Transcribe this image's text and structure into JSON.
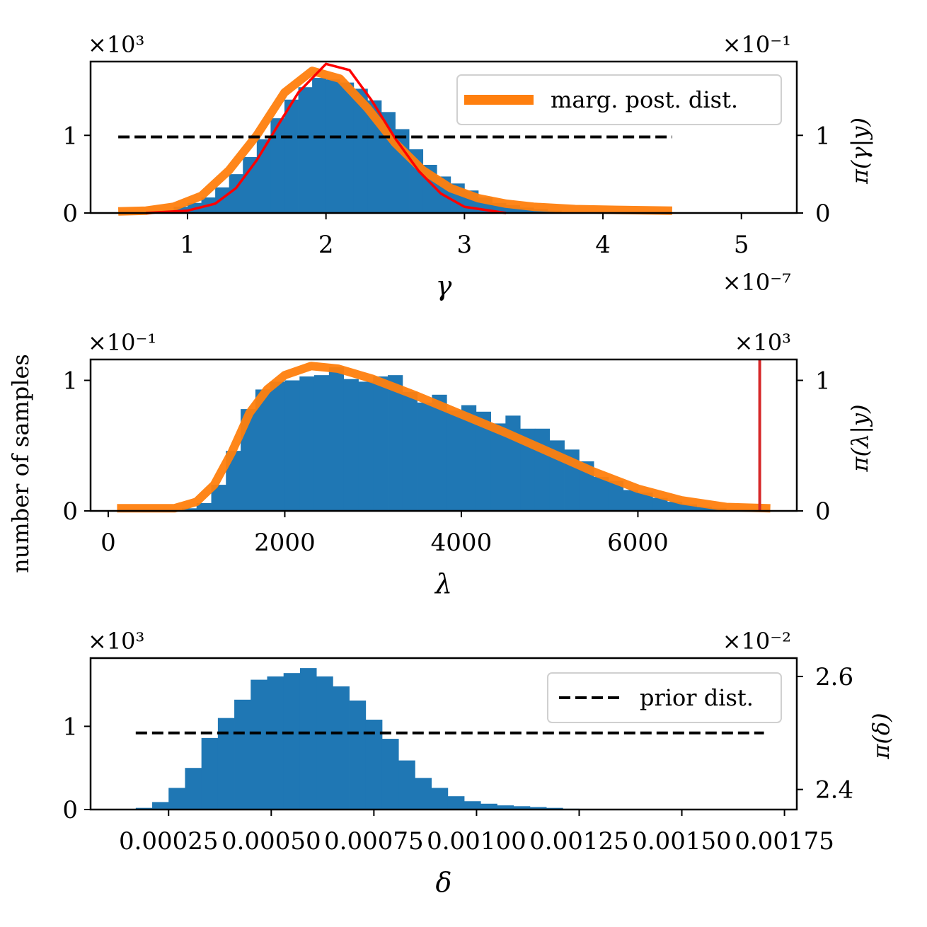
{
  "figure": {
    "shared_ylabel": "number of samples"
  },
  "chart_data": [
    {
      "type": "bar",
      "xlabel": "γ",
      "ylabel_right": "π(γ|y)",
      "x_multiplier": "×10⁻⁷",
      "left_multiplier": "×10³",
      "right_multiplier": "×10⁻¹",
      "xlim": [
        0.3,
        5.4
      ],
      "xticks": [
        1,
        2,
        3,
        4,
        5
      ],
      "xtick_labels": [
        "1",
        "2",
        "3",
        "4",
        "5"
      ],
      "left_ylim": [
        0,
        1.95
      ],
      "left_yticks": [
        0,
        1
      ],
      "left_ytick_labels": [
        "0",
        "1"
      ],
      "right_ylim": [
        0,
        1.95
      ],
      "right_yticks": [
        0,
        1
      ],
      "right_ytick_labels": [
        "0",
        "1"
      ],
      "histogram": {
        "color": "#1f77b4",
        "bin_width": 0.1,
        "bin_starts": [
          0.9,
          1.0,
          1.1,
          1.2,
          1.3,
          1.4,
          1.5,
          1.6,
          1.7,
          1.8,
          1.9,
          2.0,
          2.1,
          2.2,
          2.3,
          2.4,
          2.5,
          2.6,
          2.7,
          2.8,
          2.9,
          3.0,
          3.1,
          3.2,
          3.3,
          3.4,
          3.5,
          3.6
        ],
        "counts": [
          0.08,
          0.13,
          0.2,
          0.33,
          0.5,
          0.72,
          0.95,
          1.22,
          1.46,
          1.62,
          1.74,
          1.72,
          1.68,
          1.6,
          1.45,
          1.3,
          1.08,
          0.82,
          0.62,
          0.47,
          0.38,
          0.29,
          0.2,
          0.13,
          0.1,
          0.07,
          0.05,
          0.03
        ]
      },
      "series": [
        {
          "name": "marg. post. dist.",
          "color": "#ff7f0e",
          "x": [
            0.5,
            0.7,
            0.9,
            1.1,
            1.3,
            1.5,
            1.7,
            1.9,
            2.1,
            2.3,
            2.5,
            2.7,
            2.9,
            3.1,
            3.3,
            3.5,
            3.8,
            4.1,
            4.5
          ],
          "y": [
            0.02,
            0.03,
            0.08,
            0.22,
            0.55,
            1.0,
            1.55,
            1.83,
            1.73,
            1.35,
            0.9,
            0.55,
            0.32,
            0.19,
            0.12,
            0.08,
            0.05,
            0.04,
            0.03
          ]
        },
        {
          "color": "#ff0000",
          "axis": "right",
          "x": [
            0.7,
            1.0,
            1.2,
            1.35,
            1.5,
            1.65,
            1.8,
            2.0,
            2.17,
            2.33,
            2.5,
            2.67,
            2.83,
            3.0,
            3.3
          ],
          "y": [
            0.0,
            0.03,
            0.12,
            0.32,
            0.68,
            1.12,
            1.55,
            1.92,
            1.84,
            1.45,
            0.96,
            0.54,
            0.25,
            0.08,
            0.0
          ]
        },
        {
          "color": "#000000",
          "style": "dashed",
          "x": [
            0.5,
            4.5
          ],
          "y": [
            0.98,
            0.98
          ]
        }
      ],
      "legend": {
        "placement": "top-right",
        "entries": [
          "marg. post. dist."
        ]
      }
    },
    {
      "type": "bar",
      "xlabel": "λ",
      "ylabel_right": "π(λ|y)",
      "left_multiplier": "×10⁻¹",
      "right_multiplier": "×10³",
      "xlim": [
        -200,
        7800
      ],
      "xticks": [
        0,
        2000,
        4000,
        6000
      ],
      "xtick_labels": [
        "0",
        "2000",
        "4000",
        "6000"
      ],
      "left_ylim": [
        0,
        1.16
      ],
      "left_yticks": [
        0,
        1
      ],
      "left_ytick_labels": [
        "0",
        "1"
      ],
      "right_ylim": [
        0,
        1.16
      ],
      "right_yticks": [
        0,
        1
      ],
      "right_ytick_labels": [
        "0",
        "1"
      ],
      "histogram": {
        "color": "#1f77b4",
        "bin_width": 167,
        "bin_starts": [
          833,
          1000,
          1167,
          1333,
          1500,
          1667,
          1833,
          2000,
          2167,
          2333,
          2500,
          2667,
          2833,
          3000,
          3167,
          3333,
          3500,
          3667,
          3833,
          4000,
          4167,
          4333,
          4500,
          4667,
          4833,
          5000,
          5167,
          5333,
          5500,
          5667,
          5833,
          6000,
          6167,
          6333,
          6500,
          6667,
          6833
        ],
        "counts": [
          0.02,
          0.06,
          0.2,
          0.46,
          0.78,
          0.93,
          0.99,
          1.0,
          1.03,
          1.04,
          1.1,
          1.01,
          0.99,
          1.03,
          1.04,
          0.91,
          0.83,
          0.89,
          0.77,
          0.81,
          0.76,
          0.67,
          0.73,
          0.63,
          0.63,
          0.54,
          0.47,
          0.38,
          0.26,
          0.23,
          0.16,
          0.14,
          0.1,
          0.07,
          0.05,
          0.03,
          0.02
        ]
      },
      "series": [
        {
          "name": "marg. post. dist.",
          "color": "#ff7f0e",
          "x": [
            100,
            750,
            1000,
            1200,
            1400,
            1600,
            1800,
            2000,
            2300,
            2600,
            3000,
            3500,
            4000,
            4500,
            5000,
            5500,
            6000,
            6500,
            7000,
            7500
          ],
          "y": [
            0.02,
            0.02,
            0.07,
            0.2,
            0.45,
            0.75,
            0.93,
            1.04,
            1.11,
            1.09,
            1.01,
            0.88,
            0.74,
            0.6,
            0.45,
            0.3,
            0.17,
            0.08,
            0.03,
            0.02
          ]
        },
        {
          "color": "#d62728",
          "axis": "right",
          "style": "vertical-line",
          "x": [
            7380,
            7380
          ],
          "y": [
            0,
            1.16
          ]
        }
      ]
    },
    {
      "type": "bar",
      "xlabel": "δ",
      "ylabel_right": "π(δ)",
      "left_multiplier": "×10³",
      "right_multiplier": "×10⁻²",
      "xlim": [
        6e-05,
        0.00178
      ],
      "xticks": [
        0.00025,
        0.0005,
        0.00075,
        0.001,
        0.00125,
        0.0015,
        0.00175
      ],
      "xtick_labels": [
        "0.00025",
        "0.00050",
        "0.00075",
        "0.00100",
        "0.00125",
        "0.00150",
        "0.00175"
      ],
      "left_ylim": [
        0,
        1.82
      ],
      "left_yticks": [
        0,
        1
      ],
      "left_ytick_labels": [
        "0",
        "1"
      ],
      "right_ylim": [
        2.3645,
        2.6325
      ],
      "right_yticks": [
        2.4,
        2.6
      ],
      "right_ytick_labels": [
        "2.4",
        "2.6"
      ],
      "histogram": {
        "color": "#1f77b4",
        "bin_width": 4e-05,
        "bin_starts": [
          0.00017,
          0.00021,
          0.00025,
          0.00029,
          0.00033,
          0.00037,
          0.00041,
          0.00045,
          0.00049,
          0.00053,
          0.00057,
          0.00061,
          0.00065,
          0.00069,
          0.00073,
          0.00077,
          0.00081,
          0.00085,
          0.00089,
          0.00093,
          0.00097,
          0.00101,
          0.00105,
          0.00109,
          0.00113,
          0.00117,
          0.00121
        ],
        "counts": [
          0.02,
          0.09,
          0.26,
          0.5,
          0.86,
          1.1,
          1.32,
          1.56,
          1.6,
          1.64,
          1.7,
          1.6,
          1.48,
          1.31,
          1.08,
          0.85,
          0.59,
          0.38,
          0.26,
          0.16,
          0.1,
          0.07,
          0.05,
          0.04,
          0.03,
          0.02,
          0.01
        ]
      },
      "series": [
        {
          "name": "prior dist.",
          "color": "#000000",
          "style": "dashed",
          "axis": "right",
          "x": [
            0.00017,
            0.0017
          ],
          "y": [
            2.5,
            2.5
          ]
        }
      ],
      "legend": {
        "placement": "top-right",
        "entries": [
          "prior dist."
        ]
      }
    }
  ]
}
